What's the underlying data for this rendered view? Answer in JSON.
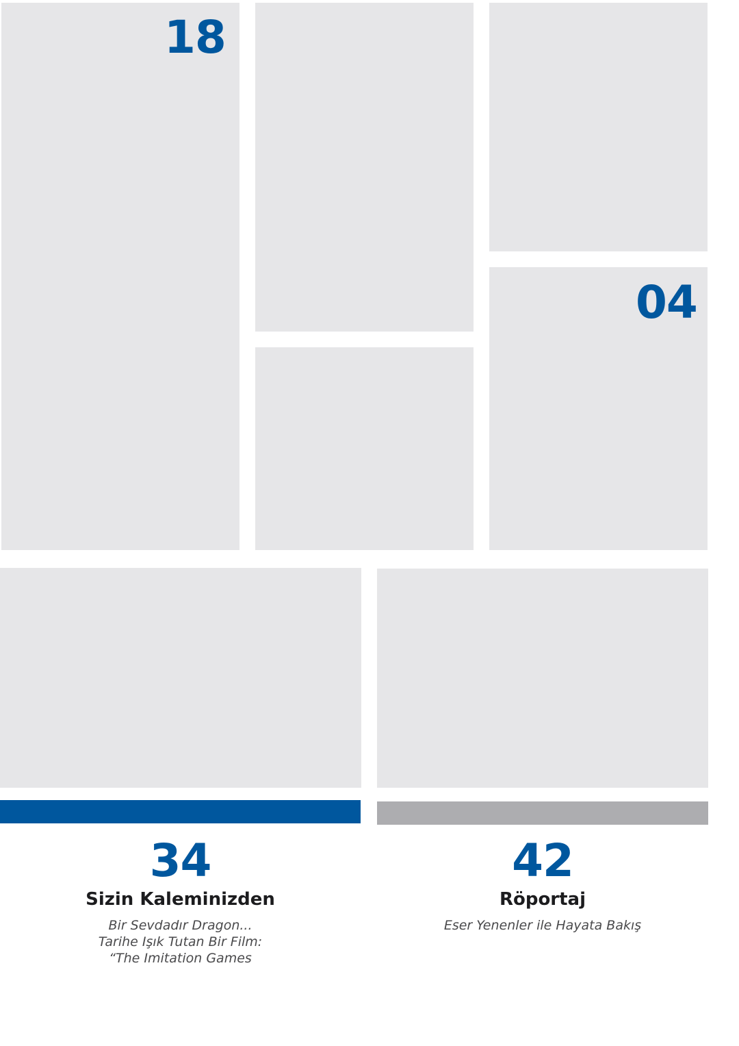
{
  "colors": {
    "accent": "#00579e",
    "panel": "#e6e6e8",
    "bar_secondary": "#adadb0"
  },
  "page_numbers": {
    "top_left": "18",
    "right_middle": "04"
  },
  "sections": [
    {
      "number": "34",
      "title": "Sizin Kaleminizden",
      "subtitles": [
        "Bir Sevdadır Dragon...",
        "Tarihe Işık Tutan Bir Film:",
        "“The Imitation Games"
      ]
    },
    {
      "number": "42",
      "title": "Röportaj",
      "subtitles": [
        "Eser Yenenler ile Hayata Bakış"
      ]
    }
  ]
}
